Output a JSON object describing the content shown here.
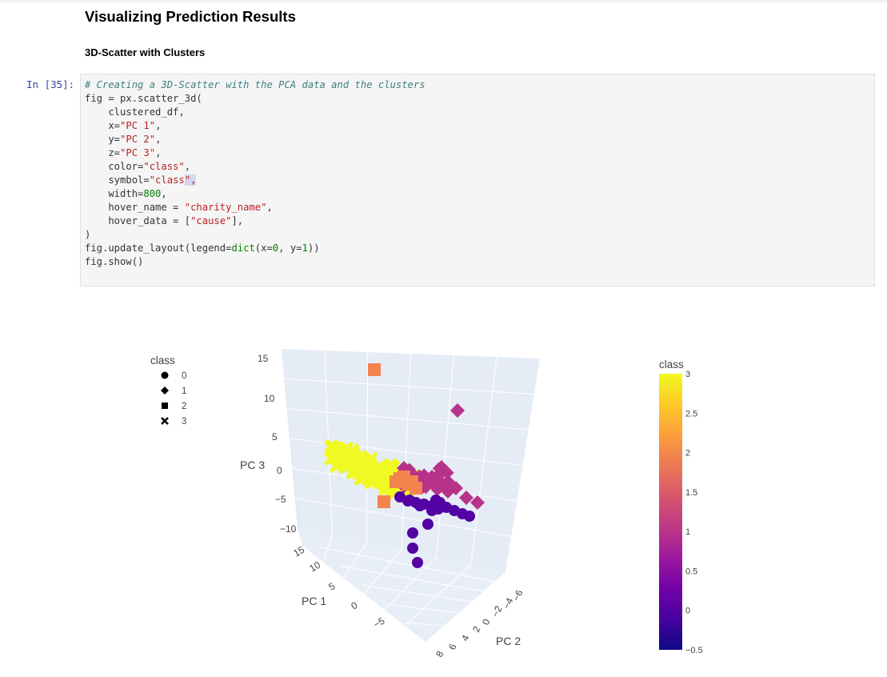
{
  "heading": "Visualizing Prediction Results",
  "subheading": "3D-Scatter with Clusters",
  "cell": {
    "prompt": "In [35]:",
    "code": {
      "line1_comment": "# Creating a 3D-Scatter with the PCA data and the clusters",
      "line2": "fig = px.scatter_3d(",
      "line3": "    clustered_df,",
      "line4_key": "    x=",
      "line4_val": "\"PC 1\"",
      "line4_end": ",",
      "line5_key": "    y=",
      "line5_val": "\"PC 2\"",
      "line5_end": ",",
      "line6_key": "    z=",
      "line6_val": "\"PC 3\"",
      "line6_end": ",",
      "line7_key": "    color=",
      "line7_val": "\"class\"",
      "line7_end": ",",
      "line8_key": "    symbol=",
      "line8_val": "\"class",
      "line8_cursor": "\",",
      "line9_key": "    width=",
      "line9_val": "800",
      "line9_end": ",",
      "line10_key": "    hover_name = ",
      "line10_val": "\"charity_name\"",
      "line10_end": ",",
      "line11_key": "    hover_data = [",
      "line11_val": "\"cause\"",
      "line11_end": "],",
      "line12": ")",
      "line13_a": "fig.update_layout(legend=",
      "line13_b": "dict",
      "line13_c": "(x=",
      "line13_d": "0",
      "line13_e": ", y=",
      "line13_f": "1",
      "line13_g": "))",
      "line14": "fig.show()"
    }
  },
  "chart_data": {
    "type": "scatter",
    "title": "",
    "legend": {
      "title": "class",
      "placement": "top-left",
      "items": [
        {
          "label": "0",
          "symbol": "circle-icon"
        },
        {
          "label": "1",
          "symbol": "diamond-icon"
        },
        {
          "label": "2",
          "symbol": "square-icon"
        },
        {
          "label": "3",
          "symbol": "cross-icon"
        }
      ]
    },
    "axes": {
      "x": {
        "label": "PC 1",
        "ticks": [
          "15",
          "10",
          "5",
          "0",
          "−5"
        ]
      },
      "y": {
        "label": "PC 2",
        "ticks": [
          "8",
          "6",
          "4",
          "2",
          "0",
          "−2",
          "−4",
          "−6"
        ]
      },
      "z": {
        "label": "PC 3",
        "ticks": [
          "15",
          "10",
          "5",
          "0",
          "−5",
          "−10"
        ]
      }
    },
    "colorbar": {
      "title": "class",
      "ticks": [
        "3",
        "2.5",
        "2",
        "1.5",
        "1",
        "0.5",
        "0",
        "−0.5"
      ],
      "range": [
        -0.5,
        3
      ],
      "colors": [
        "#0d0887",
        "#46039f",
        "#7201a8",
        "#9c179e",
        "#bd3786",
        "#d8576b",
        "#ed7953",
        "#fb9f3a",
        "#fdca26",
        "#f0f921"
      ]
    },
    "class_colors": {
      "0": "#5302a3",
      "1": "#b83289",
      "2": "#f4844e",
      "3": "#f0f921"
    },
    "grid": true
  }
}
